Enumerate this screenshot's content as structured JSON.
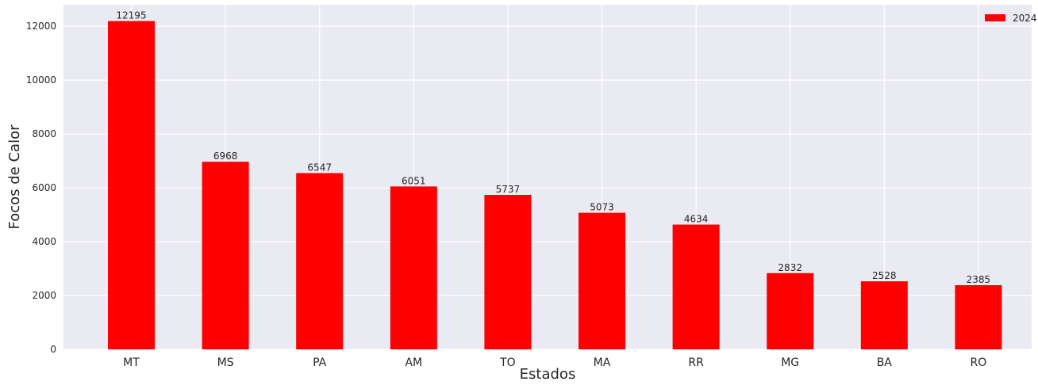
{
  "chart_data": {
    "type": "bar",
    "title": "",
    "xlabel": "Estados",
    "ylabel": "Focos de Calor",
    "categories": [
      "MT",
      "MS",
      "PA",
      "AM",
      "TO",
      "MA",
      "RR",
      "MG",
      "BA",
      "RO"
    ],
    "series": [
      {
        "name": "2024",
        "values": [
          12195,
          6968,
          6547,
          6051,
          5737,
          5073,
          4634,
          2832,
          2528,
          2385
        ]
      }
    ],
    "ylim": [
      0,
      12800
    ],
    "yticks": [
      0,
      2000,
      4000,
      6000,
      8000,
      10000,
      12000
    ],
    "grid": true,
    "legend_position": "top-right",
    "colors": {
      "bar": "#ff0000",
      "plot_background": "#eaeaf2",
      "grid": "#ffffff",
      "text": "#262626"
    }
  }
}
